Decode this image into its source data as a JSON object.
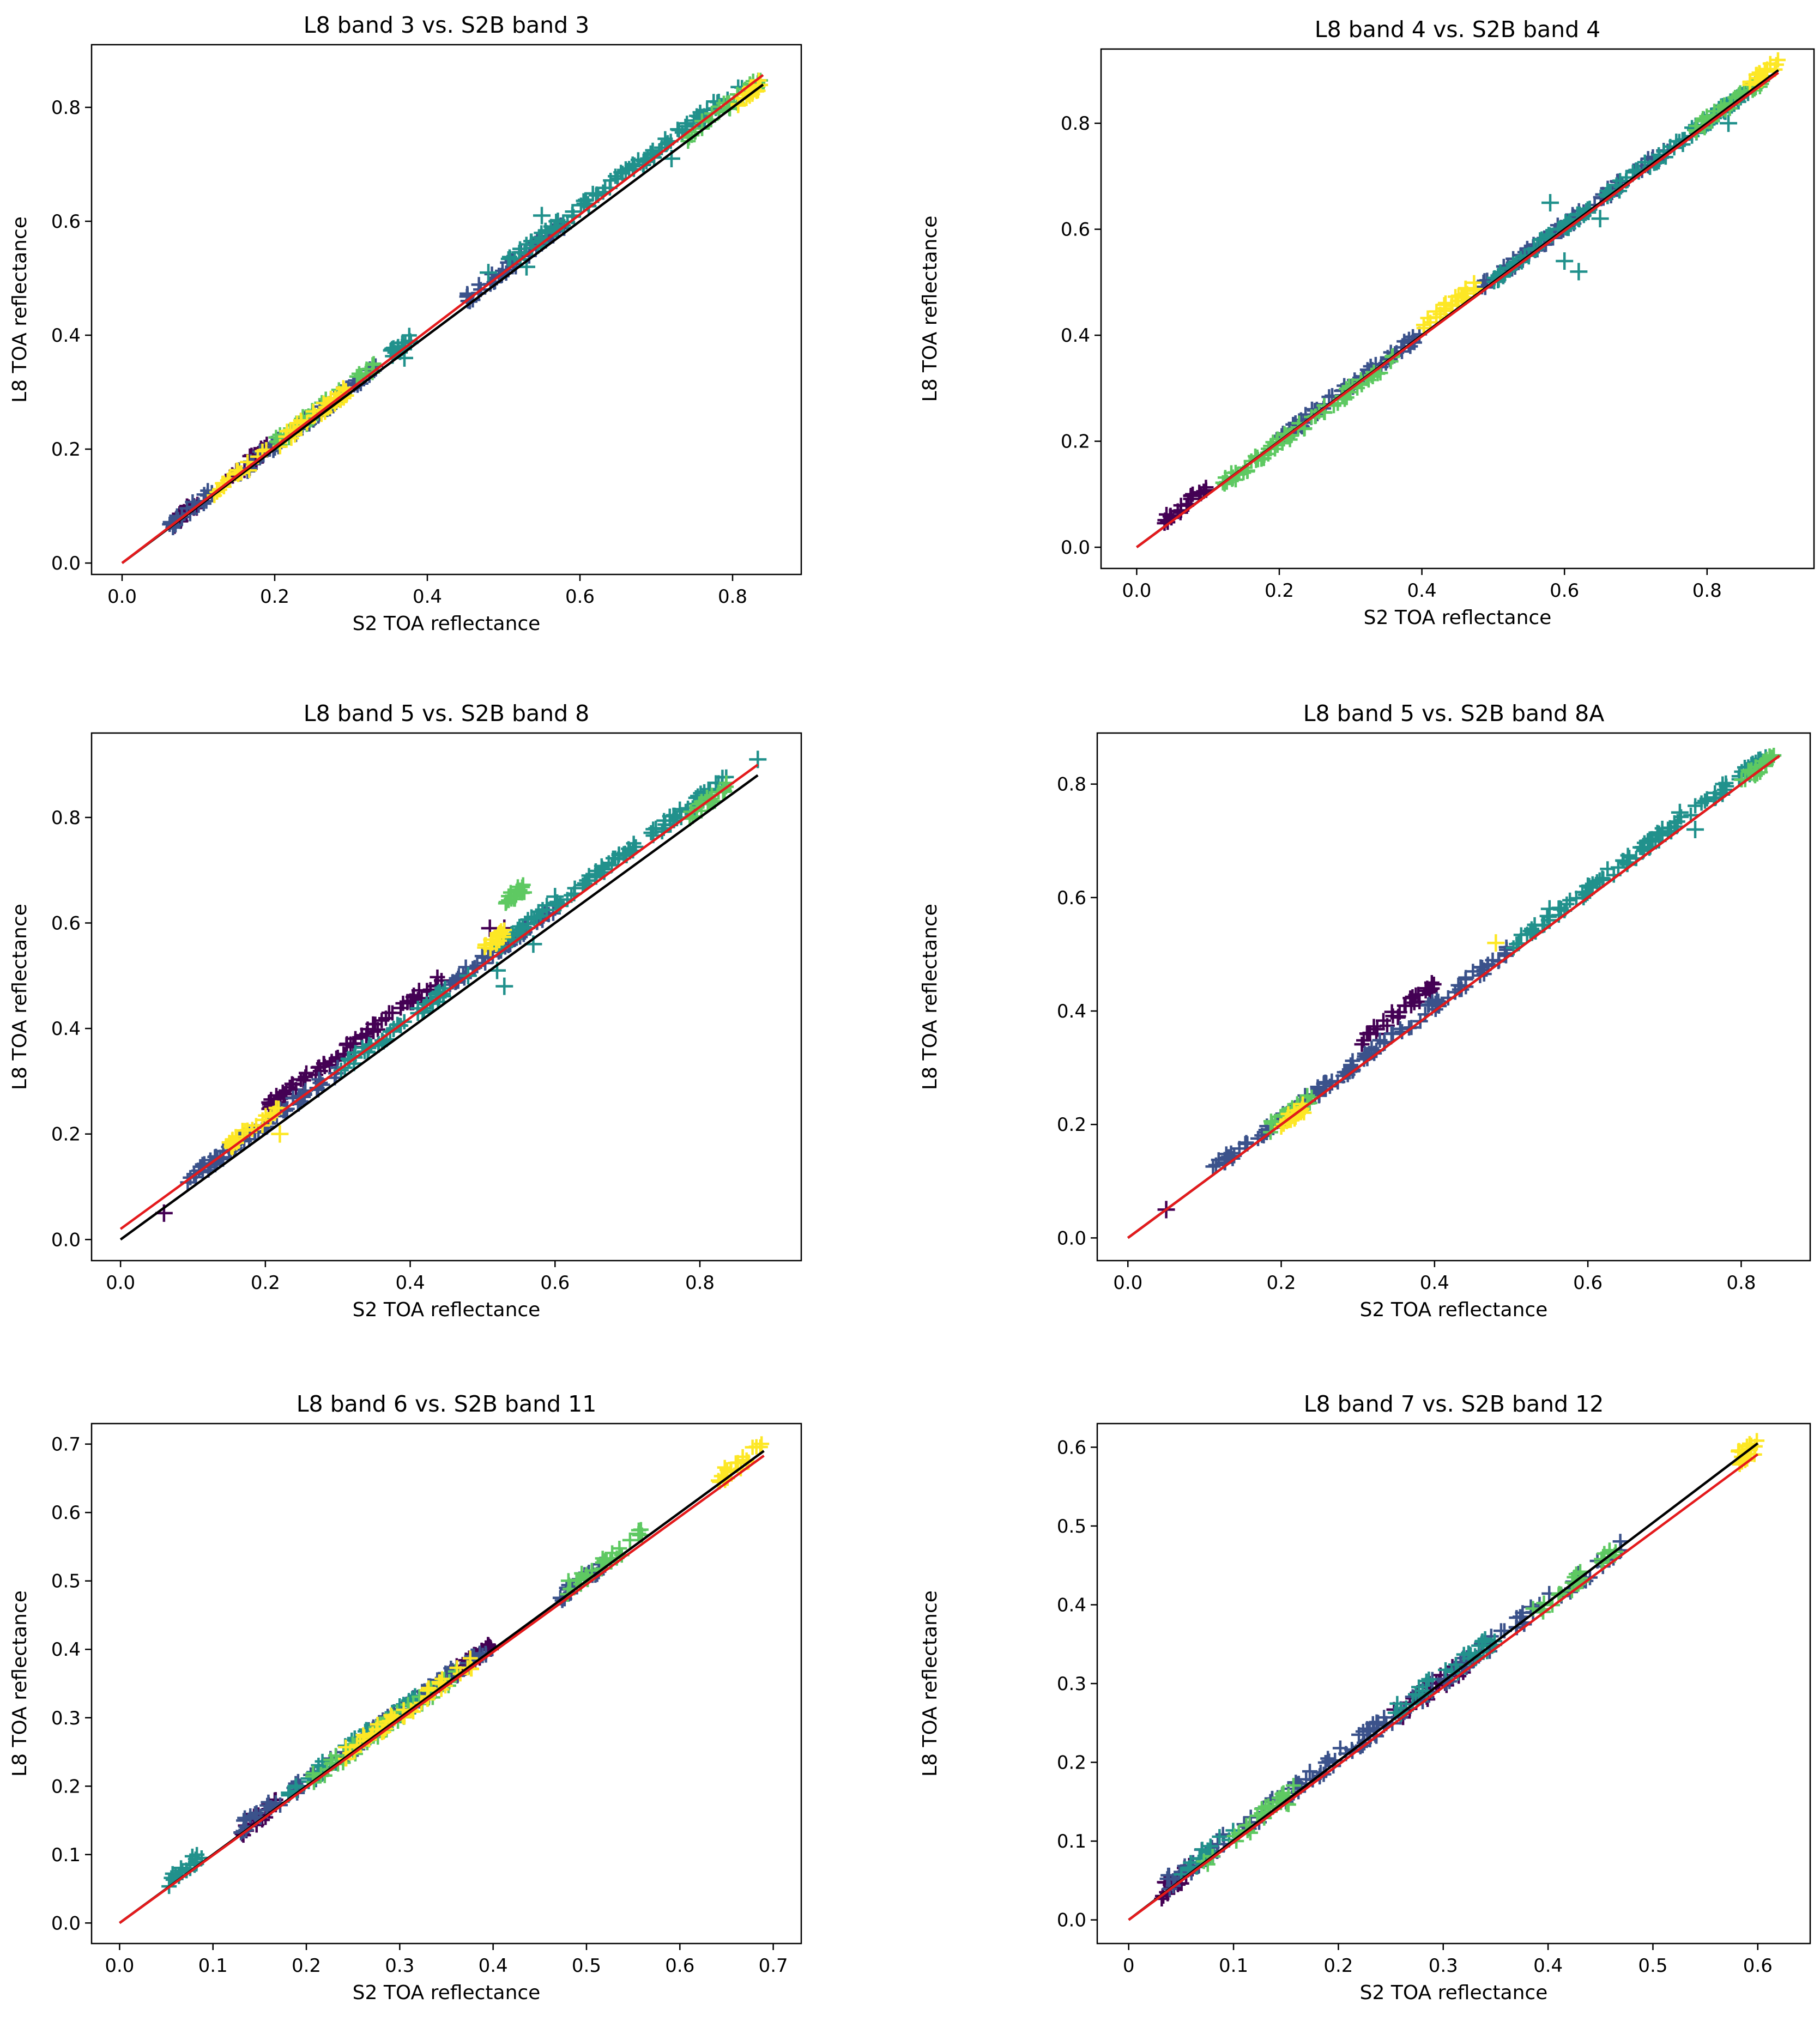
{
  "figure": {
    "description": "Six scatter panels comparing Landsat-8 and Sentinel-2B TOA reflectance"
  },
  "colors": {
    "identity_line": "#000000",
    "fit_line": "#e41a1c",
    "scatter_palette": [
      "#440154",
      "#3b528b",
      "#21918c",
      "#5ec962",
      "#fde725"
    ]
  },
  "chart_data": [
    {
      "type": "scatter",
      "title": "L8 band 3 vs. S2B band 3",
      "xlabel": "S2 TOA reflectance",
      "ylabel": "L8 TOA reflectance",
      "xlim": [
        -0.04,
        0.89
      ],
      "ylim": [
        -0.02,
        0.91
      ],
      "xticks": [
        0.0,
        0.2,
        0.4,
        0.6,
        0.8
      ],
      "yticks": [
        0.0,
        0.2,
        0.4,
        0.6,
        0.8
      ],
      "tick_labels_x": [
        "0.0",
        "0.2",
        "0.4",
        "0.6",
        "0.8"
      ],
      "tick_labels_y": [
        "0.0",
        "0.2",
        "0.4",
        "0.6",
        "0.8"
      ],
      "fit_line": {
        "slope": 1.02,
        "intercept": 0.0
      },
      "identity_line": {
        "x": [
          0.0,
          0.84
        ],
        "y": [
          0.0,
          0.84
        ]
      },
      "series": [
        {
          "color": "#440154",
          "clusters": [
            [
              0.06,
              0.1,
              0.065
            ],
            [
              0.14,
              0.2,
              0.15
            ]
          ]
        },
        {
          "color": "#3b528b",
          "clusters": [
            [
              0.06,
              0.12,
              0.065
            ],
            [
              0.15,
              0.34,
              0.155
            ],
            [
              0.45,
              0.58,
              0.462
            ]
          ]
        },
        {
          "color": "#21918c",
          "clusters": [
            [
              0.5,
              0.82,
              0.52
            ],
            [
              0.35,
              0.38,
              0.365
            ]
          ],
          "outliers": [
            [
              0.55,
              0.61
            ],
            [
              0.59,
              0.61
            ],
            [
              0.48,
              0.51
            ],
            [
              0.53,
              0.52
            ],
            [
              0.37,
              0.36
            ],
            [
              0.66,
              0.69
            ],
            [
              0.72,
              0.71
            ]
          ]
        },
        {
          "color": "#5ec962",
          "clusters": [
            [
              0.2,
              0.33,
              0.21
            ],
            [
              0.74,
              0.84,
              0.748
            ]
          ]
        },
        {
          "color": "#fde725",
          "clusters": [
            [
              0.12,
              0.3,
              0.125
            ],
            [
              0.8,
              0.84,
              0.805
            ]
          ]
        }
      ]
    },
    {
      "type": "scatter",
      "title": "L8 band 4 vs. S2B band 4",
      "xlabel": "S2 TOA reflectance",
      "ylabel": "L8 TOA reflectance",
      "xlim": [
        -0.05,
        0.95
      ],
      "ylim": [
        -0.04,
        0.94
      ],
      "xticks": [
        0.0,
        0.2,
        0.4,
        0.6,
        0.8
      ],
      "yticks": [
        0.0,
        0.2,
        0.4,
        0.6,
        0.8
      ],
      "tick_labels_x": [
        "0.0",
        "0.2",
        "0.4",
        "0.6",
        "0.8"
      ],
      "tick_labels_y": [
        "0.0",
        "0.2",
        "0.4",
        "0.6",
        "0.8"
      ],
      "fit_line": {
        "slope": 0.995,
        "intercept": 0.0
      },
      "identity_line": {
        "x": [
          0.0,
          0.9
        ],
        "y": [
          0.0,
          0.9
        ]
      },
      "series": [
        {
          "color": "#440154",
          "clusters": [
            [
              0.03,
              0.1,
              0.042
            ]
          ]
        },
        {
          "color": "#3b528b",
          "clusters": [
            [
              0.2,
              0.4,
              0.205
            ],
            [
              0.48,
              0.75,
              0.488
            ]
          ]
        },
        {
          "color": "#21918c",
          "clusters": [
            [
              0.5,
              0.88,
              0.505
            ]
          ],
          "outliers": [
            [
              0.58,
              0.65
            ],
            [
              0.55,
              0.55
            ],
            [
              0.62,
              0.52
            ],
            [
              0.6,
              0.54
            ],
            [
              0.83,
              0.8
            ],
            [
              0.65,
              0.62
            ]
          ]
        },
        {
          "color": "#5ec962",
          "clusters": [
            [
              0.12,
              0.36,
              0.118
            ],
            [
              0.78,
              0.88,
              0.785
            ]
          ]
        },
        {
          "color": "#fde725",
          "clusters": [
            [
              0.4,
              0.48,
              0.42
            ],
            [
              0.86,
              0.9,
              0.875
            ]
          ]
        }
      ]
    },
    {
      "type": "scatter",
      "title": "L8 band 5 vs. S2B band 8",
      "xlabel": "S2 TOA reflectance",
      "ylabel": "L8 TOA reflectance",
      "xlim": [
        -0.04,
        0.94
      ],
      "ylim": [
        -0.04,
        0.96
      ],
      "xticks": [
        0.0,
        0.2,
        0.4,
        0.6,
        0.8
      ],
      "yticks": [
        0.0,
        0.2,
        0.4,
        0.6,
        0.8
      ],
      "tick_labels_x": [
        "0.0",
        "0.2",
        "0.4",
        "0.6",
        "0.8"
      ],
      "tick_labels_y": [
        "0.0",
        "0.2",
        "0.4",
        "0.6",
        "0.8"
      ],
      "fit_line": {
        "slope": 1.0,
        "intercept": 0.02
      },
      "identity_line": {
        "x": [
          0.0,
          0.88
        ],
        "y": [
          0.0,
          0.88
        ]
      },
      "series": [
        {
          "color": "#440154",
          "clusters": [
            [
              0.2,
              0.45,
              0.25
            ]
          ],
          "outliers": [
            [
              0.06,
              0.05
            ],
            [
              0.22,
              0.26
            ],
            [
              0.51,
              0.59
            ],
            [
              0.53,
              0.59
            ]
          ]
        },
        {
          "color": "#3b528b",
          "clusters": [
            [
              0.09,
              0.3,
              0.11
            ],
            [
              0.45,
              0.6,
              0.48
            ]
          ]
        },
        {
          "color": "#21918c",
          "clusters": [
            [
              0.52,
              0.84,
              0.555
            ],
            [
              0.3,
              0.45,
              0.32
            ]
          ],
          "outliers": [
            [
              0.88,
              0.91
            ],
            [
              0.53,
              0.48
            ],
            [
              0.52,
              0.51
            ],
            [
              0.57,
              0.56
            ],
            [
              0.6,
              0.65
            ],
            [
              0.48,
              0.5
            ]
          ]
        },
        {
          "color": "#5ec962",
          "clusters": [
            [
              0.53,
              0.56,
              0.64
            ],
            [
              0.78,
              0.84,
              0.8
            ]
          ]
        },
        {
          "color": "#fde725",
          "clusters": [
            [
              0.5,
              0.53,
              0.55
            ],
            [
              0.14,
              0.22,
              0.17
            ]
          ],
          "outliers": [
            [
              0.22,
              0.2
            ]
          ]
        }
      ]
    },
    {
      "type": "scatter",
      "title": "L8 band 5 vs. S2B band 8A",
      "xlabel": "S2 TOA reflectance",
      "ylabel": "L8 TOA reflectance",
      "xlim": [
        -0.04,
        0.89
      ],
      "ylim": [
        -0.04,
        0.89
      ],
      "xticks": [
        0.0,
        0.2,
        0.4,
        0.6,
        0.8
      ],
      "yticks": [
        0.0,
        0.2,
        0.4,
        0.6,
        0.8
      ],
      "tick_labels_x": [
        "0.0",
        "0.2",
        "0.4",
        "0.6",
        "0.8"
      ],
      "tick_labels_y": [
        "0.0",
        "0.2",
        "0.4",
        "0.6",
        "0.8"
      ],
      "fit_line": {
        "slope": 1.0,
        "intercept": 0.0
      },
      "identity_line": {
        "x": [
          0.0,
          0.85
        ],
        "y": [
          0.0,
          0.85
        ]
      },
      "series": [
        {
          "color": "#440154",
          "clusters": [
            [
              0.3,
              0.4,
              0.345
            ]
          ],
          "outliers": [
            [
              0.05,
              0.05
            ]
          ]
        },
        {
          "color": "#3b528b",
          "clusters": [
            [
              0.11,
              0.5,
              0.12
            ]
          ]
        },
        {
          "color": "#21918c",
          "clusters": [
            [
              0.5,
              0.84,
              0.515
            ]
          ],
          "outliers": [
            [
              0.55,
              0.58
            ],
            [
              0.6,
              0.62
            ],
            [
              0.72,
              0.75
            ],
            [
              0.74,
              0.72
            ],
            [
              0.55,
              0.56
            ]
          ]
        },
        {
          "color": "#5ec962",
          "clusters": [
            [
              0.18,
              0.24,
              0.19
            ],
            [
              0.8,
              0.85,
              0.805
            ]
          ]
        },
        {
          "color": "#fde725",
          "clusters": [
            [
              0.2,
              0.23,
              0.2
            ]
          ],
          "outliers": [
            [
              0.48,
              0.52
            ]
          ]
        }
      ]
    },
    {
      "type": "scatter",
      "title": "L8 band 6 vs. S2B band 11",
      "xlabel": "S2 TOA reflectance",
      "ylabel": "L8 TOA reflectance",
      "xlim": [
        -0.03,
        0.73
      ],
      "ylim": [
        -0.03,
        0.73
      ],
      "xticks": [
        0.0,
        0.1,
        0.2,
        0.3,
        0.4,
        0.5,
        0.6,
        0.7
      ],
      "yticks": [
        0.0,
        0.1,
        0.2,
        0.3,
        0.4,
        0.5,
        0.6,
        0.7
      ],
      "tick_labels_x": [
        "0.0",
        "0.1",
        "0.2",
        "0.3",
        "0.4",
        "0.5",
        "0.6",
        "0.7"
      ],
      "tick_labels_y": [
        "0.0",
        "0.1",
        "0.2",
        "0.3",
        "0.4",
        "0.5",
        "0.6",
        "0.7"
      ],
      "fit_line": {
        "slope": 0.99,
        "intercept": 0.0
      },
      "identity_line": {
        "x": [
          0.0,
          0.69
        ],
        "y": [
          0.0,
          0.69
        ]
      },
      "series": [
        {
          "color": "#440154",
          "clusters": [
            [
              0.13,
              0.17,
              0.135
            ],
            [
              0.36,
              0.4,
              0.365
            ]
          ]
        },
        {
          "color": "#3b528b",
          "clusters": [
            [
              0.13,
              0.4,
              0.14
            ],
            [
              0.46,
              0.52,
              0.465
            ]
          ]
        },
        {
          "color": "#21918c",
          "clusters": [
            [
              0.05,
              0.09,
              0.06
            ],
            [
              0.18,
              0.32,
              0.19
            ]
          ]
        },
        {
          "color": "#5ec962",
          "clusters": [
            [
              0.2,
              0.36,
              0.205
            ],
            [
              0.47,
              0.56,
              0.48
            ]
          ]
        },
        {
          "color": "#fde725",
          "clusters": [
            [
              0.24,
              0.38,
              0.245
            ],
            [
              0.64,
              0.69,
              0.648
            ]
          ]
        }
      ]
    },
    {
      "type": "scatter",
      "title": "L8 band 7 vs. S2B band 12",
      "xlabel": "S2 TOA reflectance",
      "ylabel": "L8 TOA reflectance",
      "xlim": [
        -0.03,
        0.65
      ],
      "ylim": [
        -0.03,
        0.63
      ],
      "xticks": [
        0.0,
        0.1,
        0.2,
        0.3,
        0.4,
        0.5,
        0.6
      ],
      "yticks": [
        0.0,
        0.1,
        0.2,
        0.3,
        0.4,
        0.5,
        0.6
      ],
      "tick_labels_x": [
        "0",
        "0.1",
        "0.2",
        "0.3",
        "0.4",
        "0.5",
        "0.6"
      ],
      "tick_labels_y": [
        "0.0",
        "0.1",
        "0.2",
        "0.3",
        "0.4",
        "0.5",
        "0.6"
      ],
      "fit_line": {
        "slope": 0.985,
        "intercept": 0.0
      },
      "identity_line": {
        "x": [
          0.0,
          0.6
        ],
        "y": [
          0.0,
          0.605
        ]
      },
      "series": [
        {
          "color": "#440154",
          "clusters": [
            [
              0.03,
              0.06,
              0.035
            ],
            [
              0.25,
              0.32,
              0.255
            ]
          ]
        },
        {
          "color": "#3b528b",
          "clusters": [
            [
              0.03,
              0.48,
              0.04
            ]
          ]
        },
        {
          "color": "#21918c",
          "clusters": [
            [
              0.05,
              0.1,
              0.06
            ],
            [
              0.25,
              0.35,
              0.26
            ]
          ]
        },
        {
          "color": "#5ec962",
          "clusters": [
            [
              0.07,
              0.16,
              0.075
            ],
            [
              0.38,
              0.47,
              0.385
            ]
          ]
        },
        {
          "color": "#fde725",
          "clusters": [
            [
              0.58,
              0.6,
              0.584
            ]
          ]
        }
      ]
    }
  ]
}
